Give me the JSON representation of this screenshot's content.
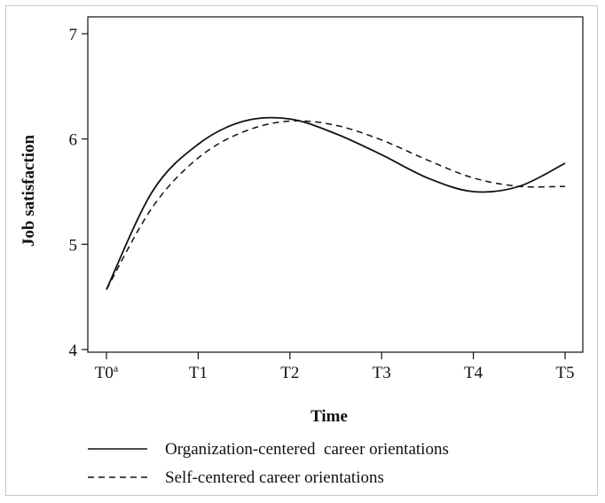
{
  "chart_data": {
    "type": "line",
    "xlabel": "Time",
    "ylabel": "Job satisfaction",
    "x_ticks": [
      "T0",
      "T1",
      "T2",
      "T3",
      "T4",
      "T5"
    ],
    "x_tick_superscript": "a",
    "x": [
      0,
      0.5,
      1,
      1.5,
      2,
      2.5,
      3,
      3.5,
      4,
      4.5,
      5
    ],
    "y_ticks": [
      "4",
      "5",
      "6",
      "7"
    ],
    "ylim": [
      4,
      7
    ],
    "xlim": [
      0,
      5
    ],
    "grid": false,
    "legend_position": "bottom",
    "series": [
      {
        "name": "Organization-centered  career orientations",
        "line_style": "solid",
        "color": "#111111",
        "values": [
          4.57,
          5.5,
          5.95,
          6.17,
          6.19,
          6.05,
          5.85,
          5.63,
          5.5,
          5.55,
          5.77
        ]
      },
      {
        "name": "Self-centered career orientations",
        "line_style": "dashed",
        "color": "#111111",
        "values": [
          4.57,
          5.35,
          5.82,
          6.07,
          6.17,
          6.13,
          5.99,
          5.8,
          5.63,
          5.55,
          5.55
        ]
      }
    ]
  }
}
